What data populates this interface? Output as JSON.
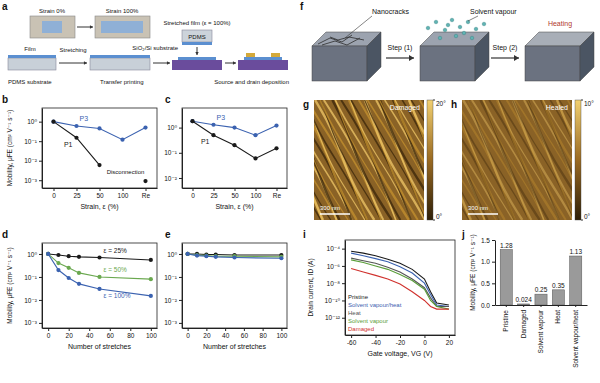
{
  "panel_a": {
    "title": "a",
    "photo_labels": [
      "Strain 0%",
      "Strain 100%"
    ],
    "film": "Film",
    "pdms_substrate": "PDMS substrate",
    "stretching": "Stretching",
    "sio2_substrate": "SiO₂/Si substrate",
    "transfer_printing": "Transfer printing",
    "pdms": "PDMS",
    "stretched_film": "Stretched film (ε = 100%)",
    "deposition": "Source and drain deposition"
  },
  "panel_f": {
    "title": "f",
    "nanocracks": "Nanocracks",
    "solvent_vapour": "Solvent vapour",
    "heating": "Heating",
    "step1": "Step (1)",
    "step2": "Step (2)"
  },
  "afm_images": [
    {
      "title": "g",
      "label": "Damaged",
      "scale_bar": "300 nm",
      "colorbar_range": [
        0,
        20
      ],
      "colorbar_ticks": [
        {
          "value": 20,
          "label": "20°"
        },
        {
          "value": 0,
          "label": "0°"
        }
      ]
    },
    {
      "title": "h",
      "label": "Healed",
      "scale_bar": "300 nm",
      "colorbar_range": [
        0,
        10
      ],
      "colorbar_ticks": [
        {
          "value": 10,
          "label": "10°"
        },
        {
          "value": 0,
          "label": "0°"
        }
      ]
    }
  ],
  "chart_data": [
    {
      "type": "line",
      "title": "b",
      "categories": [
        "0",
        "25",
        "50",
        "100",
        "Re"
      ],
      "xlabel": "Strain, ε (%)",
      "ylabel": "Mobility, μFE (cm² V⁻¹ s⁻¹)",
      "log": "y",
      "ylim": [
        0.0004,
        5
      ],
      "yticks": [
        {
          "value": 0.001,
          "label": "10⁻³"
        },
        {
          "value": 0.01,
          "label": "10⁻²"
        },
        {
          "value": 0.1,
          "label": "10⁻¹"
        },
        {
          "value": 1,
          "label": "10⁰"
        }
      ],
      "series": [
        {
          "name": "P3",
          "color": "#3b62b0",
          "marker": "circle",
          "values": [
            1.0,
            0.6,
            0.45,
            0.12,
            0.5
          ]
        },
        {
          "name": "P1",
          "color": "#1a1a1a",
          "marker": "circle",
          "values": [
            1.0,
            0.15,
            0.006,
            null,
            0.0009
          ]
        }
      ],
      "annotations": [
        "Disconnection"
      ]
    },
    {
      "type": "line",
      "title": "c",
      "categories": [
        "0",
        "25",
        "50",
        "100",
        "Re"
      ],
      "xlabel": "Strain, ε (%)",
      "log": "y",
      "ylim": [
        0.004,
        6
      ],
      "yticks": [
        {
          "value": 0.01,
          "label": "10⁻²"
        },
        {
          "value": 0.1,
          "label": "10⁻¹"
        },
        {
          "value": 1,
          "label": "10⁰"
        }
      ],
      "series": [
        {
          "name": "P3",
          "color": "#3b62b0",
          "marker": "circle",
          "values": [
            1.8,
            1.3,
            1.0,
            0.5,
            1.2
          ]
        },
        {
          "name": "P1",
          "color": "#1a1a1a",
          "marker": "circle",
          "values": [
            1.8,
            0.5,
            0.2,
            0.06,
            0.15
          ]
        }
      ]
    },
    {
      "type": "line",
      "title": "d",
      "x": [
        0,
        10,
        20,
        30,
        50,
        100
      ],
      "xlim": [
        -6,
        106
      ],
      "xticks": [
        0,
        20,
        40,
        60,
        80,
        100
      ],
      "xlabel": "Number of stretches",
      "ylabel": "Mobility, μFE (cm² V⁻¹ s⁻¹)",
      "log": "y",
      "ylim": [
        0.0006,
        3
      ],
      "yticks": [
        {
          "value": 0.001,
          "label": "10⁻³"
        },
        {
          "value": 0.01,
          "label": "10⁻²"
        },
        {
          "value": 0.1,
          "label": "10⁻¹"
        },
        {
          "value": 1,
          "label": "10⁰"
        }
      ],
      "series": [
        {
          "name": "ε = 25%",
          "color": "#1a1a1a",
          "marker": "circle",
          "values": [
            1.0,
            0.9,
            0.8,
            0.75,
            0.7,
            0.55
          ]
        },
        {
          "name": "ε = 50%",
          "color": "#6aa84f",
          "marker": "circle",
          "values": [
            1.0,
            0.4,
            0.25,
            0.15,
            0.1,
            0.08
          ]
        },
        {
          "name": "ε = 100%",
          "color": "#3b62b0",
          "marker": "circle",
          "values": [
            1.0,
            0.2,
            0.09,
            0.05,
            0.03,
            0.015
          ]
        }
      ]
    },
    {
      "type": "line",
      "title": "e",
      "x": [
        0,
        10,
        20,
        30,
        50,
        100
      ],
      "xlim": [
        -6,
        106
      ],
      "xticks": [
        0,
        20,
        40,
        60,
        80,
        100
      ],
      "xlabel": "Number of stretches",
      "log": "y",
      "ylim": [
        0.0006,
        3
      ],
      "yticks": [
        {
          "value": 0.001,
          "label": "10⁻³"
        },
        {
          "value": 0.01,
          "label": "10⁻²"
        },
        {
          "value": 0.1,
          "label": "10⁻¹"
        },
        {
          "value": 1,
          "label": "10⁰"
        }
      ],
      "series": [
        {
          "color": "#1a1a1a",
          "marker": "circle",
          "values": [
            1.0,
            1.0,
            0.95,
            0.95,
            0.9,
            0.9
          ]
        },
        {
          "color": "#6aa84f",
          "marker": "circle",
          "values": [
            1.0,
            0.9,
            0.85,
            0.8,
            0.8,
            0.75
          ]
        },
        {
          "color": "#3b62b0",
          "marker": "circle",
          "values": [
            1.0,
            0.85,
            0.8,
            0.75,
            0.7,
            0.65
          ]
        }
      ]
    },
    {
      "type": "line",
      "title": "i",
      "x": [
        -60,
        -50,
        -40,
        -30,
        -20,
        -10,
        0,
        5,
        10,
        20
      ],
      "xlim": [
        -65,
        25
      ],
      "xticks": [
        -60,
        -40,
        -20,
        0,
        20
      ],
      "xlabel": "Gate voltage, VG (V)",
      "ylabel": "Drain current, ID (A)",
      "log": "y",
      "ylim": [
        1e-14,
        0.001
      ],
      "yticks": [
        {
          "value": 1e-12,
          "label": "10⁻¹²"
        },
        {
          "value": 1e-10,
          "label": "10⁻¹⁰"
        },
        {
          "value": 1e-08,
          "label": "10⁻⁸"
        },
        {
          "value": 1e-06,
          "label": "10⁻⁶"
        },
        {
          "value": 0.0001,
          "label": "10⁻⁴"
        }
      ],
      "marker": "none",
      "series": [
        {
          "name": "Pristine",
          "color": "#1a1a1a",
          "values": [
            5e-05,
            3e-05,
            1.5e-05,
            6e-06,
            2e-06,
            4e-07,
            3e-08,
            1e-09,
            5e-11,
            3e-11
          ]
        },
        {
          "name": "Solvent vapour/heat",
          "color": "#3b62b0",
          "values": [
            3e-05,
            1.5e-05,
            7e-06,
            3e-06,
            8e-07,
            1.5e-07,
            1e-08,
            5e-10,
            3e-11,
            2e-11
          ]
        },
        {
          "name": "Heat",
          "color": "#555555",
          "values": [
            8e-06,
            4e-06,
            2e-06,
            7e-07,
            2e-07,
            3e-08,
            3e-09,
            2e-10,
            2e-11,
            2e-11
          ]
        },
        {
          "name": "Solvent vapour",
          "color": "#5a9e3a",
          "values": [
            5e-06,
            2.5e-06,
            1e-06,
            4e-07,
            1e-07,
            2e-08,
            2e-09,
            1e-10,
            2e-11,
            1e-11
          ]
        },
        {
          "name": "Damaged",
          "color": "#d0312d",
          "values": [
            5e-07,
            2e-07,
            8e-08,
            3e-08,
            8e-09,
            1e-09,
            1e-10,
            2e-11,
            1e-11,
            1e-11
          ]
        }
      ]
    },
    {
      "type": "bar",
      "title": "j",
      "categories": [
        "Pristine",
        "Damaged",
        "Solvent vapour",
        "Heat",
        "Solvent vapour/heat"
      ],
      "values": [
        1.28,
        0.024,
        0.25,
        0.35,
        1.13
      ],
      "color": "#9a9a9a",
      "ylabel": "Mobility, μFE (cm² V⁻¹ s⁻¹)",
      "ylim": [
        0,
        1.5
      ],
      "yticks": [
        {
          "value": 0,
          "label": "0.0"
        },
        0.5,
        {
          "value": 1,
          "label": "1.0"
        },
        1.5
      ],
      "data_labels": true
    }
  ]
}
